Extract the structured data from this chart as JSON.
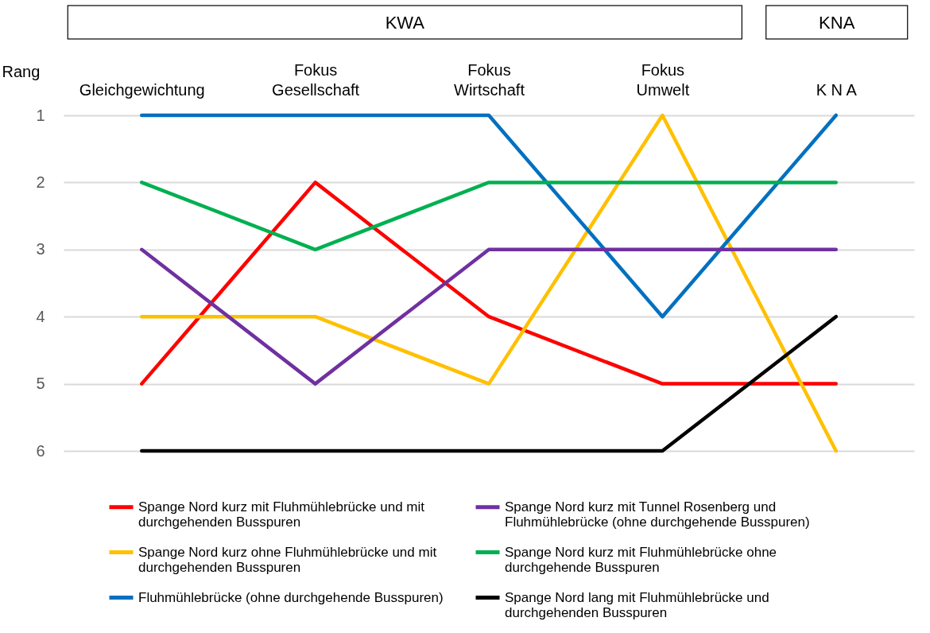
{
  "chart_data": {
    "type": "line",
    "categories": [
      "Gleichgewichtung",
      "Fokus\nGesellschaft",
      "Fokus\nWirtschaft",
      "Fokus\nUmwelt",
      "K N A"
    ],
    "ylabel": "Rang",
    "ylim": [
      6,
      1
    ],
    "yticks": [
      1,
      2,
      3,
      4,
      5,
      6
    ],
    "grid": "y",
    "legend": "bottom",
    "annotations": [
      "KWA",
      "KNA"
    ],
    "series": [
      {
        "name": "Spange Nord kurz mit Fluhmühlebrücke und mit durchgehenden Busspuren",
        "color": "#ff0000",
        "values": [
          5,
          2,
          4,
          5,
          5
        ]
      },
      {
        "name": "Spange Nord kurz ohne Fluhmühlebrücke und mit durchgehenden Busspuren",
        "color": "#ffc000",
        "values": [
          4,
          4,
          5,
          1,
          6
        ]
      },
      {
        "name": "Fluhmühlebrücke (ohne durchgehende Busspuren)",
        "color": "#0070c0",
        "values": [
          1,
          1,
          1,
          4,
          1
        ]
      },
      {
        "name": "Spange Nord kurz mit Tunnel Rosenberg und Fluhmühlebrücke (ohne durchgehende Busspuren)",
        "color": "#7030a0",
        "values": [
          3,
          5,
          3,
          3,
          3
        ]
      },
      {
        "name": "Spange Nord kurz mit Fluhmühlebrücke ohne durchgehende Busspuren",
        "color": "#00b050",
        "values": [
          2,
          3,
          2,
          2,
          2
        ]
      },
      {
        "name": "Spange Nord lang mit Fluhmühlebrücke und durchgehenden Busspuren",
        "color": "#000000",
        "values": [
          6,
          6,
          6,
          6,
          4
        ]
      }
    ]
  }
}
